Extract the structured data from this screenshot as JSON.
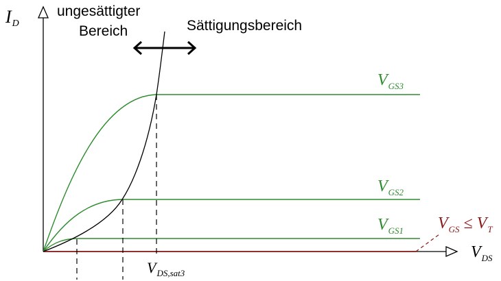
{
  "colors": {
    "axis": "#000000",
    "curves": "#2e8b2e",
    "threshold": "#8b1a1a",
    "boundary": "#000000"
  },
  "axes": {
    "y": {
      "main": "I",
      "sub": "D"
    },
    "x": {
      "main": "V",
      "sub": "DS"
    }
  },
  "regions": {
    "ohmic_line1": "ungesättigter",
    "ohmic_line2": "Bereich",
    "saturation": "Sättigungsbereich"
  },
  "curves": [
    {
      "main": "V",
      "sub": "GS3"
    },
    {
      "main": "V",
      "sub": "GS2"
    },
    {
      "main": "V",
      "sub": "GS1"
    }
  ],
  "threshold": {
    "main1": "V",
    "sub1": "GS",
    "op": " ≤ ",
    "main2": "V",
    "sub2": "T"
  },
  "vdssat": {
    "main": "V",
    "sub": "DS,sat3"
  }
}
